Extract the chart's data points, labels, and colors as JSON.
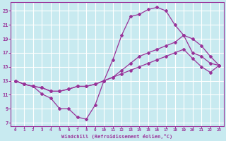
{
  "xlabel": "Windchill (Refroidissement éolien,°C)",
  "bg_color": "#c8eaf0",
  "grid_color": "#ffffff",
  "line_color": "#993399",
  "xlim_min": -0.5,
  "xlim_max": 23.5,
  "ylim_min": 6.5,
  "ylim_max": 24.2,
  "xticks": [
    0,
    1,
    2,
    3,
    4,
    5,
    6,
    7,
    8,
    9,
    10,
    11,
    12,
    13,
    14,
    15,
    16,
    17,
    18,
    19,
    20,
    21,
    22,
    23
  ],
  "yticks": [
    7,
    9,
    11,
    13,
    15,
    17,
    19,
    21,
    23
  ],
  "hours": [
    0,
    1,
    2,
    3,
    4,
    5,
    6,
    7,
    8,
    9,
    10,
    11,
    12,
    13,
    14,
    15,
    16,
    17,
    18,
    19,
    20,
    21,
    22,
    23
  ],
  "line1": [
    13,
    12.5,
    12.2,
    11.1,
    10.5,
    9.0,
    9.0,
    7.8,
    7.5,
    9.5,
    13.0,
    16.0,
    19.5,
    22.2,
    22.5,
    23.2,
    23.5,
    23.0,
    21.0,
    19.5,
    17.0,
    16.5,
    15.5,
    15.2
  ],
  "line2": [
    13,
    12.5,
    12.2,
    12.0,
    11.5,
    11.5,
    11.8,
    12.2,
    12.2,
    12.5,
    13.0,
    13.5,
    14.5,
    15.5,
    16.5,
    17.0,
    17.5,
    18.0,
    18.5,
    19.5,
    19.0,
    18.0,
    16.5,
    15.2
  ],
  "line3": [
    13,
    12.5,
    12.2,
    12.0,
    11.5,
    11.5,
    11.8,
    12.2,
    12.2,
    12.5,
    13.0,
    13.5,
    14.0,
    14.5,
    15.0,
    15.5,
    16.0,
    16.5,
    17.0,
    17.5,
    16.2,
    15.0,
    14.2,
    15.2
  ]
}
